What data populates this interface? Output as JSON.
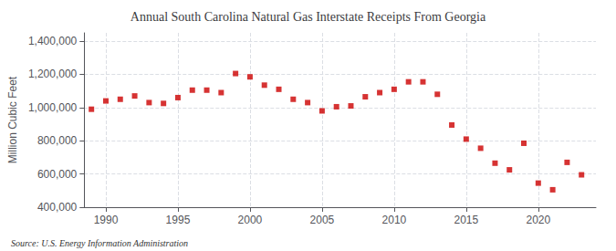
{
  "chart_data": {
    "type": "scatter",
    "title": "Annual South Carolina Natural Gas Interstate Receipts From Georgia",
    "ylabel": "Million Cubic Feet",
    "annotations": [
      "Source: U.S. Energy Information Administration"
    ],
    "x": [
      1989,
      1990,
      1991,
      1992,
      1993,
      1994,
      1995,
      1996,
      1997,
      1998,
      1999,
      2000,
      2001,
      2002,
      2003,
      2004,
      2005,
      2006,
      2007,
      2008,
      2009,
      2010,
      2011,
      2012,
      2013,
      2014,
      2015,
      2016,
      2017,
      2018,
      2019,
      2020,
      2021,
      2022,
      2023
    ],
    "values": [
      990000,
      1040000,
      1050000,
      1070000,
      1030000,
      1025000,
      1060000,
      1105000,
      1105000,
      1090000,
      1205000,
      1185000,
      1135000,
      1110000,
      1050000,
      1030000,
      980000,
      1005000,
      1010000,
      1065000,
      1090000,
      1110000,
      1155000,
      1155000,
      1080000,
      895000,
      810000,
      755000,
      665000,
      625000,
      785000,
      545000,
      505000,
      670000,
      595000
    ],
    "color": "#cc0000",
    "marker": "square",
    "xlim": [
      1988.5,
      2024
    ],
    "ylim": [
      400000,
      1450000
    ],
    "xticks": [
      1990,
      1995,
      2000,
      2005,
      2010,
      2015,
      2020
    ],
    "yticks": [
      {
        "value": 400000,
        "label": "400,000"
      },
      {
        "value": 600000,
        "label": "600,000"
      },
      {
        "value": 800000,
        "label": "800,000"
      },
      {
        "value": 1000000,
        "label": "1,000,000"
      },
      {
        "value": 1200000,
        "label": "1,200,000"
      },
      {
        "value": 1400000,
        "label": "1,400,000"
      }
    ],
    "grid": true
  }
}
